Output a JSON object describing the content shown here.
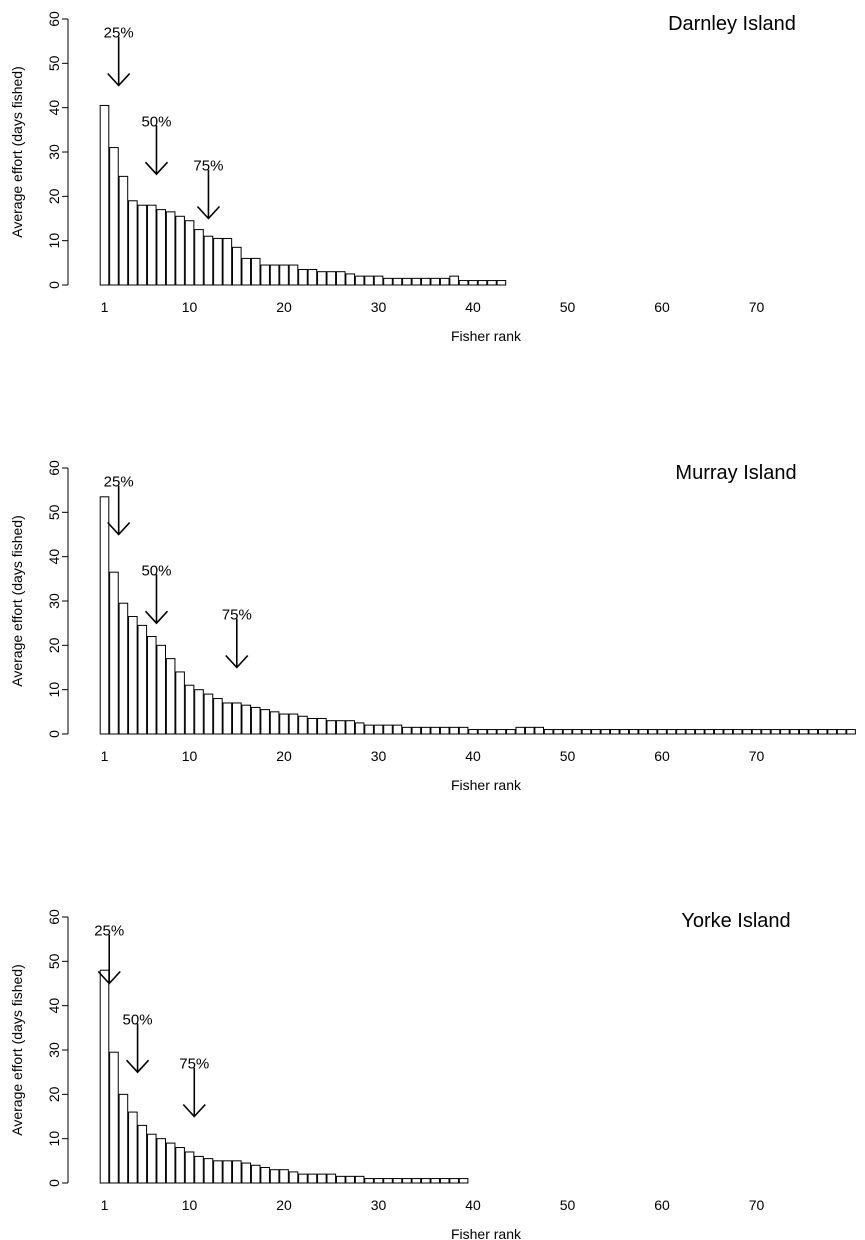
{
  "chart_data": [
    {
      "type": "bar",
      "title": "Darnley Island",
      "xlabel": "Fisher rank",
      "ylabel": "Average effort (days fished)",
      "ylim": [
        0,
        60
      ],
      "yticks": [
        0,
        10,
        20,
        30,
        40,
        50,
        60
      ],
      "xticks": [
        1,
        10,
        20,
        30,
        40,
        50,
        60,
        70
      ],
      "x_range": [
        1,
        80
      ],
      "values": [
        40.5,
        31,
        24.5,
        19,
        18,
        18,
        17,
        16.5,
        15.5,
        14.5,
        12.5,
        11,
        10.5,
        10.5,
        8.5,
        6,
        6,
        4.5,
        4.5,
        4.5,
        4.5,
        3.5,
        3.5,
        3,
        3,
        3,
        2.5,
        2,
        2,
        2,
        1.5,
        1.5,
        1.5,
        1.5,
        1.5,
        1.5,
        1.5,
        2,
        1,
        1,
        1,
        1,
        1,
        0,
        0,
        0,
        0,
        0,
        0,
        0,
        0,
        0,
        0,
        0,
        0,
        0,
        0,
        0,
        0,
        0,
        0,
        0,
        0,
        0,
        0,
        0,
        0,
        0,
        0,
        0,
        0,
        0,
        0,
        0,
        0,
        0,
        0,
        0,
        0,
        0
      ],
      "annotations": [
        {
          "label": "25%",
          "x": 2.5,
          "y_top": 56,
          "y_tip": 45
        },
        {
          "label": "50%",
          "x": 6.5,
          "y_top": 36,
          "y_tip": 25
        },
        {
          "label": "75%",
          "x": 12,
          "y_top": 26,
          "y_tip": 15
        }
      ]
    },
    {
      "type": "bar",
      "title": "Murray Island",
      "xlabel": "Fisher rank",
      "ylabel": "Average effort (days fished)",
      "ylim": [
        0,
        60
      ],
      "yticks": [
        0,
        10,
        20,
        30,
        40,
        50,
        60
      ],
      "xticks": [
        1,
        10,
        20,
        30,
        40,
        50,
        60,
        70
      ],
      "x_range": [
        1,
        80
      ],
      "values": [
        53.5,
        36.5,
        29.5,
        26.5,
        24.5,
        22,
        20,
        17,
        14,
        11,
        10,
        9,
        8,
        7,
        7,
        6.5,
        6,
        5.5,
        5,
        4.5,
        4.5,
        4,
        3.5,
        3.5,
        3,
        3,
        3,
        2.5,
        2,
        2,
        2,
        2,
        1.5,
        1.5,
        1.5,
        1.5,
        1.5,
        1.5,
        1.5,
        1,
        1,
        1,
        1,
        1,
        1.5,
        1.5,
        1.5,
        1,
        1,
        1,
        1,
        1,
        1,
        1,
        1,
        1,
        1,
        1,
        1,
        1,
        1,
        1,
        1,
        1,
        1,
        1,
        1,
        1,
        1,
        1,
        1,
        1,
        1,
        1,
        1,
        1,
        1,
        1,
        1,
        1
      ],
      "annotations": [
        {
          "label": "25%",
          "x": 2.5,
          "y_top": 56,
          "y_tip": 45
        },
        {
          "label": "50%",
          "x": 6.5,
          "y_top": 36,
          "y_tip": 25
        },
        {
          "label": "75%",
          "x": 15,
          "y_top": 26,
          "y_tip": 15
        }
      ]
    },
    {
      "type": "bar",
      "title": "Yorke Island",
      "xlabel": "Fisher rank",
      "ylabel": "Average effort (days fished)",
      "ylim": [
        0,
        60
      ],
      "yticks": [
        0,
        10,
        20,
        30,
        40,
        50,
        60
      ],
      "xticks": [
        1,
        10,
        20,
        30,
        40,
        50,
        60,
        70
      ],
      "x_range": [
        1,
        80
      ],
      "values": [
        48,
        29.5,
        20,
        16,
        13,
        11,
        10,
        9,
        8,
        7,
        6,
        5.5,
        5,
        5,
        5,
        4.5,
        4,
        3.5,
        3,
        3,
        2.5,
        2,
        2,
        2,
        2,
        1.5,
        1.5,
        1.5,
        1,
        1,
        1,
        1,
        1,
        1,
        1,
        1,
        1,
        1,
        1,
        0,
        0,
        0,
        0,
        0,
        0,
        0,
        0,
        0,
        0,
        0,
        0,
        0,
        0,
        0,
        0,
        0,
        0,
        0,
        0,
        0,
        0,
        0,
        0,
        0,
        0,
        0,
        0,
        0,
        0,
        0,
        0,
        0,
        0,
        0,
        0,
        0,
        0,
        0,
        0,
        0
      ],
      "annotations": [
        {
          "label": "25%",
          "x": 1.5,
          "y_top": 56,
          "y_tip": 45
        },
        {
          "label": "50%",
          "x": 4.5,
          "y_top": 36,
          "y_tip": 25
        },
        {
          "label": "75%",
          "x": 10.5,
          "y_top": 26,
          "y_tip": 15
        }
      ]
    }
  ]
}
